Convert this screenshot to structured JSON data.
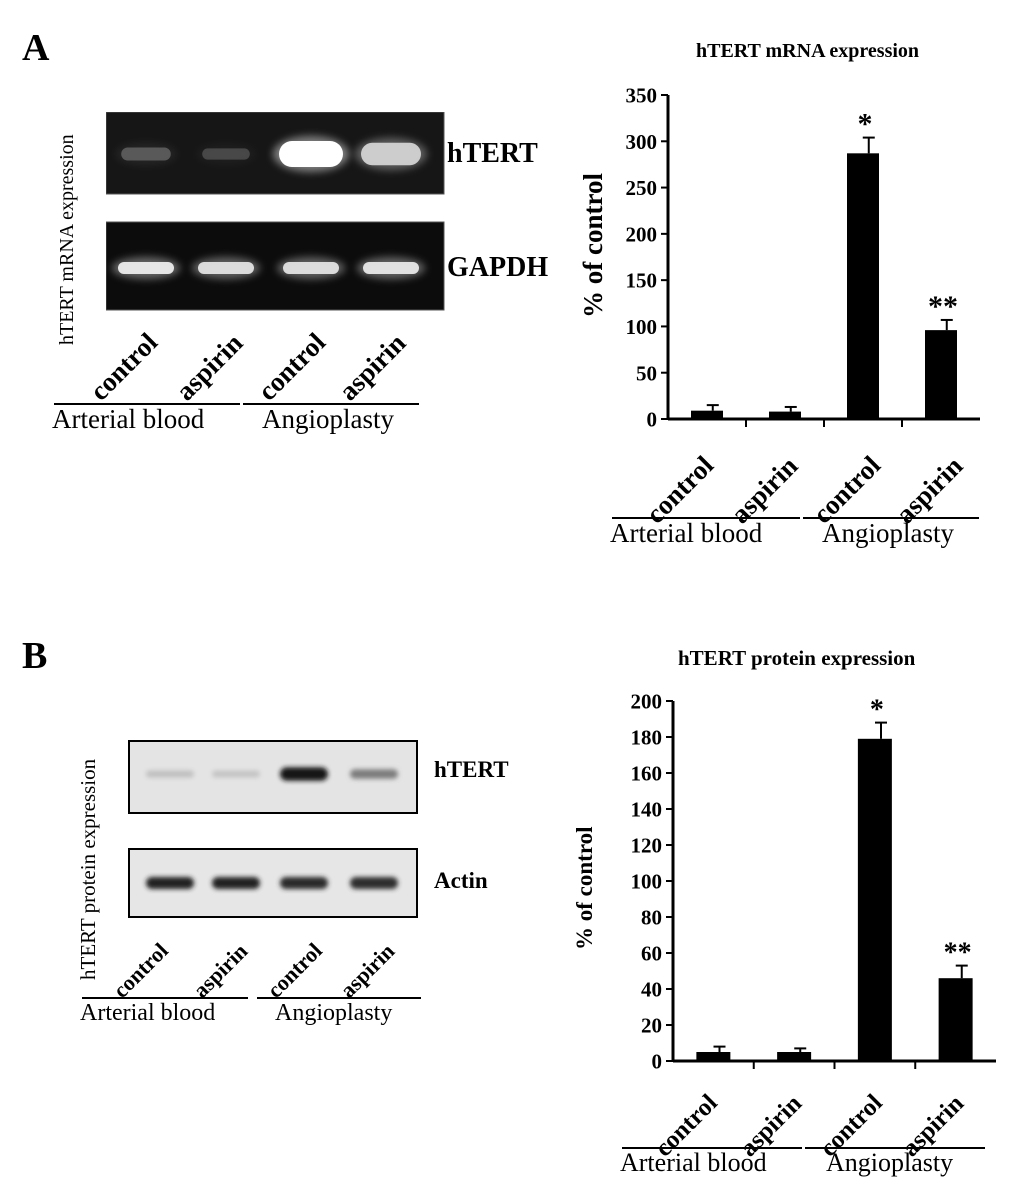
{
  "panels": [
    {
      "letter": "A",
      "blot": {
        "side_label": "hTERT mRNA expression",
        "rows": [
          {
            "name": "hTERT",
            "intensities": [
              0.28,
              0.18,
              1.0,
              0.8
            ]
          },
          {
            "name": "GAPDH",
            "intensities": [
              0.9,
              0.86,
              0.86,
              0.88
            ]
          }
        ],
        "lanes": [
          "control",
          "aspirin",
          "control",
          "aspirin"
        ],
        "groups": [
          "Arterial blood",
          "Angioplasty"
        ]
      },
      "chart_data": {
        "type": "bar",
        "title": "hTERT mRNA expression",
        "ylabel": "% of control",
        "xlabel": "",
        "categories": [
          "control",
          "aspirin",
          "control",
          "aspirin"
        ],
        "groups": [
          "Arterial blood",
          "Angioplasty"
        ],
        "values": [
          9,
          8,
          287,
          96
        ],
        "errors": [
          6,
          5,
          17,
          11
        ],
        "annotations": [
          "",
          "",
          "*",
          "**"
        ],
        "ylim": [
          0,
          350
        ],
        "yticks": [
          0,
          50,
          100,
          150,
          200,
          250,
          300,
          350
        ],
        "bar_color": "#000000"
      }
    },
    {
      "letter": "B",
      "blot": {
        "side_label": "hTERT protein expression",
        "rows": [
          {
            "name": "hTERT",
            "intensities": [
              0.12,
              0.1,
              0.95,
              0.45
            ]
          },
          {
            "name": "Actin",
            "intensities": [
              0.9,
              0.9,
              0.86,
              0.84
            ]
          }
        ],
        "lanes": [
          "control",
          "aspirin",
          "control",
          "aspirin"
        ],
        "groups": [
          "Arterial blood",
          "Angioplasty"
        ]
      },
      "chart_data": {
        "type": "bar",
        "title": "hTERT protein expression",
        "ylabel": "% of control",
        "xlabel": "",
        "categories": [
          "control",
          "aspirin",
          "control",
          "aspirin"
        ],
        "groups": [
          "Arterial blood",
          "Angioplasty"
        ],
        "values": [
          5,
          5,
          179,
          46
        ],
        "errors": [
          3,
          2,
          9,
          7
        ],
        "annotations": [
          "",
          "",
          "*",
          "**"
        ],
        "ylim": [
          0,
          200
        ],
        "yticks": [
          0,
          20,
          40,
          60,
          80,
          100,
          120,
          140,
          160,
          180,
          200
        ],
        "bar_color": "#000000"
      }
    }
  ]
}
